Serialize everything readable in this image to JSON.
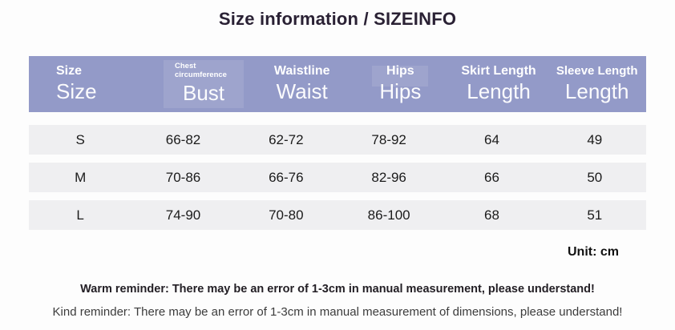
{
  "header": {
    "title": "Size information / SIZEINFO"
  },
  "table": {
    "columns": [
      {
        "top": "Size",
        "main": "Size"
      },
      {
        "top": "Chest circumference",
        "main": "Bust"
      },
      {
        "top": "Waistline",
        "main": "Waist"
      },
      {
        "top": "Hips",
        "main": "Hips"
      },
      {
        "top": "Skirt Length",
        "main": "Length"
      },
      {
        "top": "Sleeve Length",
        "main": "Length"
      }
    ],
    "rows": [
      [
        "S",
        "66-82",
        "62-72",
        "78-92",
        "64",
        "49"
      ],
      [
        "M",
        "70-86",
        "66-76",
        "82-96",
        "66",
        "50"
      ],
      [
        "L",
        "74-90",
        "70-80",
        "86-100",
        "68",
        "51"
      ]
    ]
  },
  "footer": {
    "unit": "Unit: cm",
    "warm_reminder": "Warm reminder: There may be an error of 1-3cm in manual measurement, please understand!",
    "kind_reminder": "Kind reminder: There may be an error of 1-3cm in manual measurement of dimensions, please understand!"
  },
  "colors": {
    "header_bg": "#939ac8",
    "header_text": "#ffffff",
    "row_bg": "#efeff1",
    "title_text": "#2a2134",
    "body_text": "#1b1b1b"
  },
  "chart_data": {
    "type": "table",
    "title": "Size information / SIZEINFO",
    "columns": [
      "Size",
      "Bust (Chest circumference)",
      "Waist (Waistline)",
      "Hips",
      "Skirt Length",
      "Sleeve Length"
    ],
    "rows": [
      [
        "S",
        "66-82",
        "62-72",
        "78-92",
        "64",
        "49"
      ],
      [
        "M",
        "70-86",
        "66-76",
        "82-96",
        "66",
        "50"
      ],
      [
        "L",
        "74-90",
        "70-80",
        "86-100",
        "68",
        "51"
      ]
    ],
    "unit": "cm",
    "notes": [
      "Warm reminder: There may be an error of 1-3cm in manual measurement, please understand!",
      "Kind reminder: There may be an error of 1-3cm in manual measurement of dimensions, please understand!"
    ]
  }
}
